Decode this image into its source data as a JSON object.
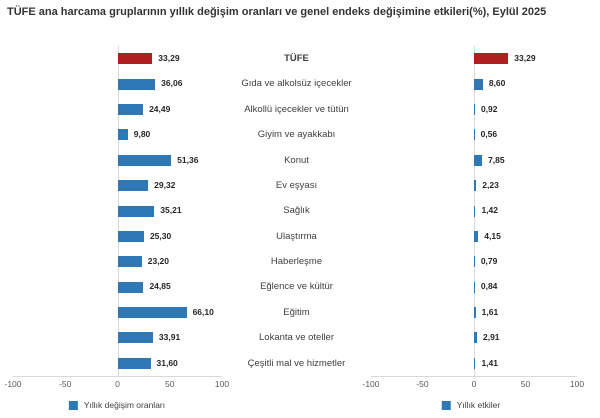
{
  "title": "TÜFE ana harcama gruplarının yıllık değişim oranları ve genel endeks değişimine etkileri(%), Eylül 2025",
  "colors": {
    "bar_blue": "#2e79b5",
    "bar_red": "#b02020",
    "grid_line": "#d9d9d9",
    "value_text": "#262626",
    "tick_text": "#595959"
  },
  "chart_data": {
    "type": "bar",
    "orientation": "horizontal",
    "title": "TÜFE ana harcama gruplarının yıllık değişim oranları ve genel endeks değişimine etkileri(%), Eylül 2025",
    "categories": [
      "TÜFE",
      "Gıda ve alkolsüz içecekler",
      "Alkollü içecekler ve tütün",
      "Giyim ve ayakkabı",
      "Konut",
      "Ev eşyası",
      "Sağlık",
      "Ulaştırma",
      "Haberleşme",
      "Eğlence ve kültür",
      "Eğitim",
      "Lokanta ve oteller",
      "Çeşitli mal ve hizmetler"
    ],
    "series": [
      {
        "name": "Yıllık değişim oranları",
        "values": [
          33.29,
          36.06,
          24.49,
          9.8,
          51.36,
          29.32,
          35.21,
          25.3,
          23.2,
          24.85,
          66.1,
          33.91,
          31.6
        ],
        "labels": [
          "33,29",
          "36,06",
          "24,49",
          "9,80",
          "51,36",
          "29,32",
          "35,21",
          "25,30",
          "23,20",
          "24,85",
          "66,10",
          "33,91",
          "31,60"
        ]
      },
      {
        "name": "Yıllık etkiler",
        "values": [
          33.29,
          8.6,
          0.92,
          0.56,
          7.85,
          2.23,
          1.42,
          4.15,
          0.79,
          0.84,
          1.61,
          2.91,
          1.41
        ],
        "labels": [
          "33,29",
          "8,60",
          "0,92",
          "0,56",
          "7,85",
          "2,23",
          "1,42",
          "4,15",
          "0,79",
          "0,84",
          "1,61",
          "2,91",
          "1,41"
        ]
      }
    ],
    "xlim": [
      -100,
      100
    ],
    "ticks": [
      -100,
      -50,
      0,
      50,
      100
    ],
    "tick_labels": [
      "-100",
      "-50",
      "0",
      "50",
      "100"
    ],
    "highlight_category": "TÜFE",
    "grid": "zero-line-only",
    "legend_position": "bottom"
  }
}
